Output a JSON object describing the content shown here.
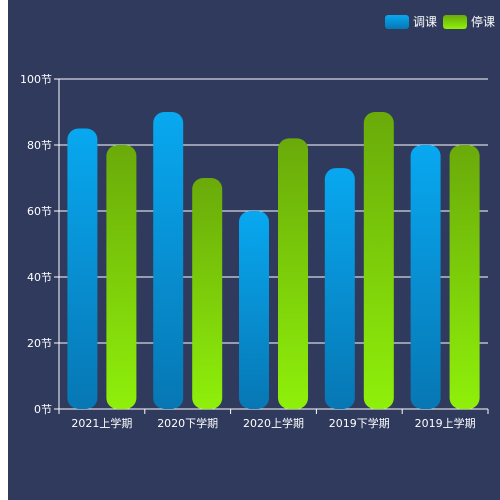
{
  "chart_data": {
    "type": "bar",
    "categories": [
      "2021上学期",
      "2020下学期",
      "2020上学期",
      "2019下学期",
      "2019上学期"
    ],
    "series": [
      {
        "name": "调课",
        "values": [
          85,
          90,
          60,
          73,
          80
        ],
        "color_top": "#08a8f0",
        "color_bottom": "#0777b4"
      },
      {
        "name": "停课",
        "values": [
          80,
          70,
          82,
          90,
          80
        ],
        "color_top": "#6aaa0a",
        "color_bottom": "#8ff00a"
      }
    ],
    "y_ticks": [
      "0节",
      "20节",
      "40节",
      "60节",
      "80节",
      "100节"
    ],
    "ylim": [
      0,
      100
    ],
    "grid": true,
    "legend_position": "top-right"
  }
}
